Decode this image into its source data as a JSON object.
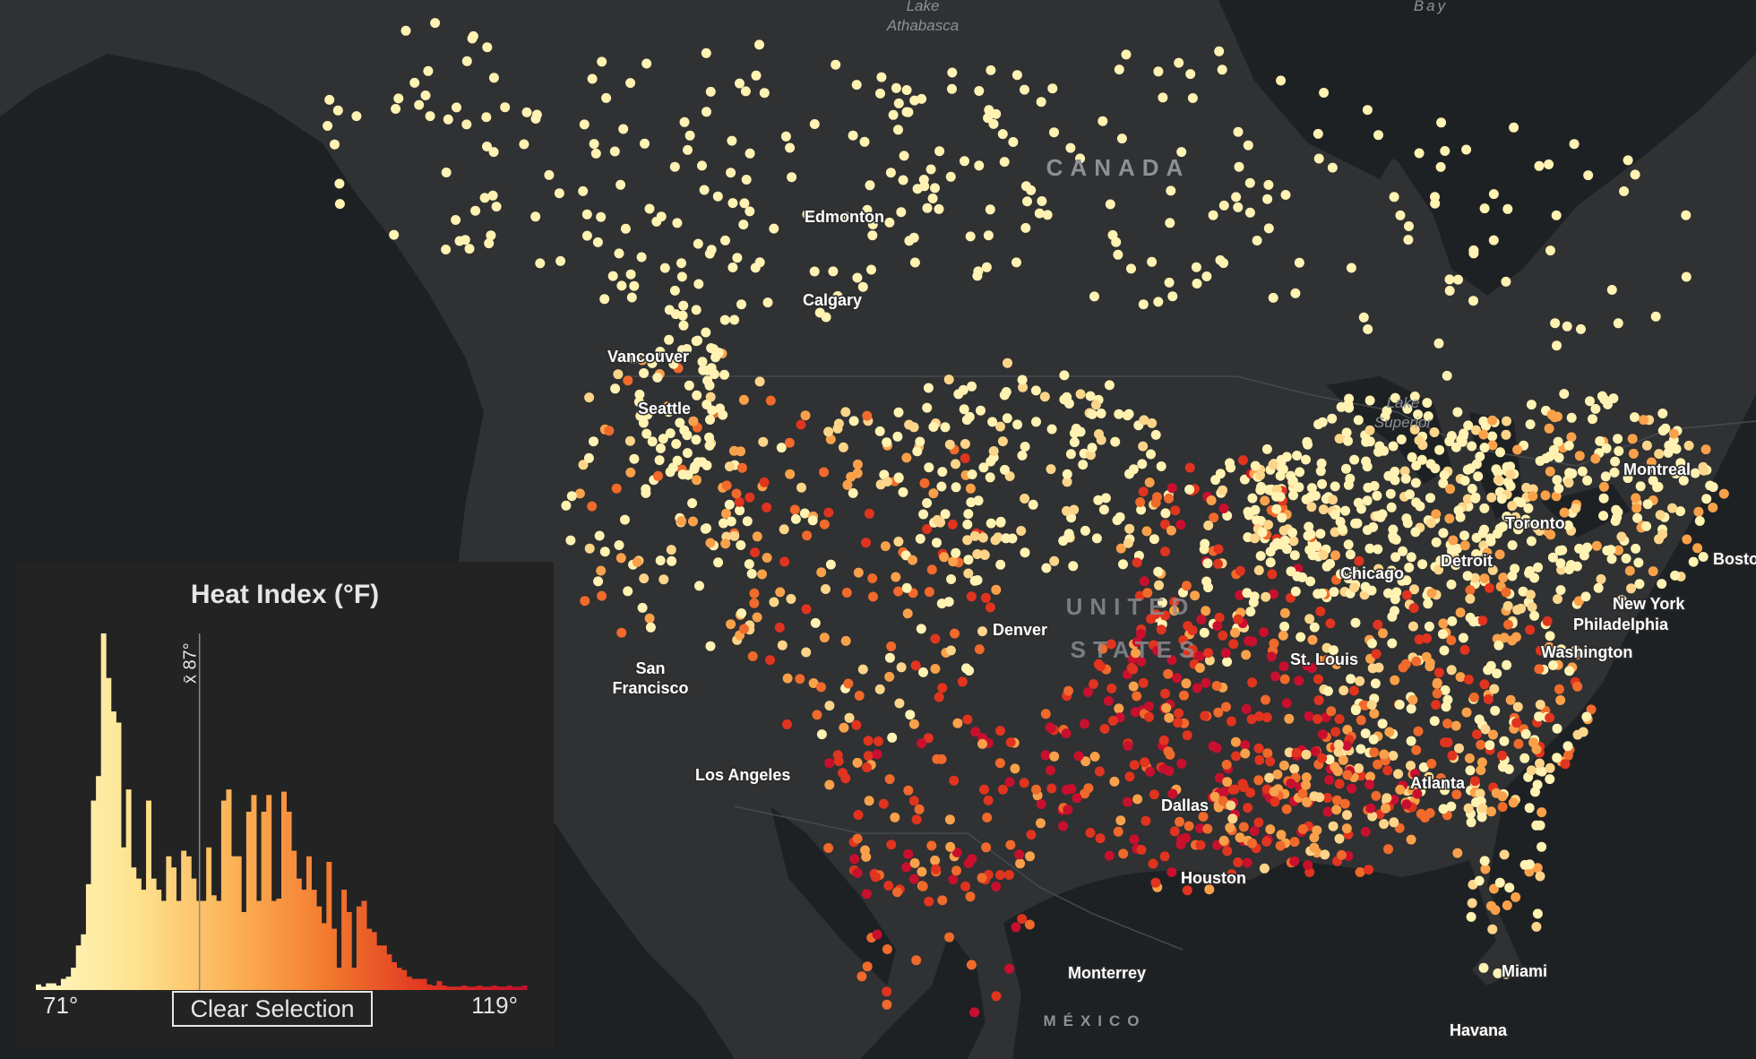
{
  "map": {
    "dot_colors": [
      "#fff2b2",
      "#fcd58a",
      "#f9a14a",
      "#ef6a2b",
      "#e0341f",
      "#c8102e"
    ],
    "background_color": "#1e2124",
    "land_color": "#2f3133",
    "water_labels": {
      "athabasca": "Lake\nAthabasca",
      "bay": "Bay",
      "superior": "Lake\nSuperior"
    },
    "region_labels": {
      "canada": "CANADA",
      "us": "UNITED\nSTATES",
      "mexico": "MÉXICO"
    },
    "cities": {
      "edmonton": "Edmonton",
      "calgary": "Calgary",
      "vancouver": "Vancouver",
      "seattle": "Seattle",
      "sf": "San\nFrancisco",
      "la": "Los Angeles",
      "denver": "Denver",
      "dallas": "Dallas",
      "houston": "Houston",
      "monterrey": "Monterrey",
      "stlouis": "St. Louis",
      "chicago": "Chicago",
      "detroit": "Detroit",
      "toronto": "Toronto",
      "montreal": "Montreal",
      "boston": "Boston",
      "newyork": "New York",
      "philadelphia": "Philadelphia",
      "washington": "Washington",
      "atlanta": "Atlanta",
      "miami": "Miami",
      "havana": "Havana"
    }
  },
  "panel": {
    "title": "Heat Index (°F)",
    "mean_label": "x̄ 87°",
    "axis_min": "71°",
    "axis_max": "119°",
    "clear_button": "Clear Selection"
  },
  "chart_data": {
    "type": "bar",
    "title": "Heat Index (°F)",
    "xlabel": "",
    "ylabel": "",
    "xlim": [
      71,
      119
    ],
    "mean": 87,
    "colors": [
      "#fff7c2",
      "#fde38f",
      "#fbb357",
      "#f3782e",
      "#e03520",
      "#c20f2f"
    ],
    "bin_width": 0.5,
    "values": [
      5,
      3,
      6,
      6,
      4,
      10,
      12,
      20,
      40,
      50,
      95,
      170,
      192,
      320,
      280,
      250,
      240,
      128,
      180,
      110,
      100,
      90,
      170,
      100,
      90,
      80,
      120,
      110,
      80,
      125,
      120,
      100,
      80,
      80,
      128,
      85,
      80,
      170,
      180,
      120,
      120,
      70,
      160,
      175,
      80,
      160,
      175,
      80,
      82,
      178,
      160,
      125,
      100,
      90,
      120,
      90,
      75,
      60,
      115,
      55,
      20,
      90,
      70,
      20,
      75,
      80,
      55,
      52,
      40,
      40,
      32,
      25,
      20,
      18,
      12,
      10,
      10,
      10,
      5,
      4,
      8,
      4,
      3,
      3,
      3,
      4,
      3,
      3,
      4,
      3,
      3,
      4,
      3,
      3,
      4,
      3,
      3,
      4
    ]
  }
}
